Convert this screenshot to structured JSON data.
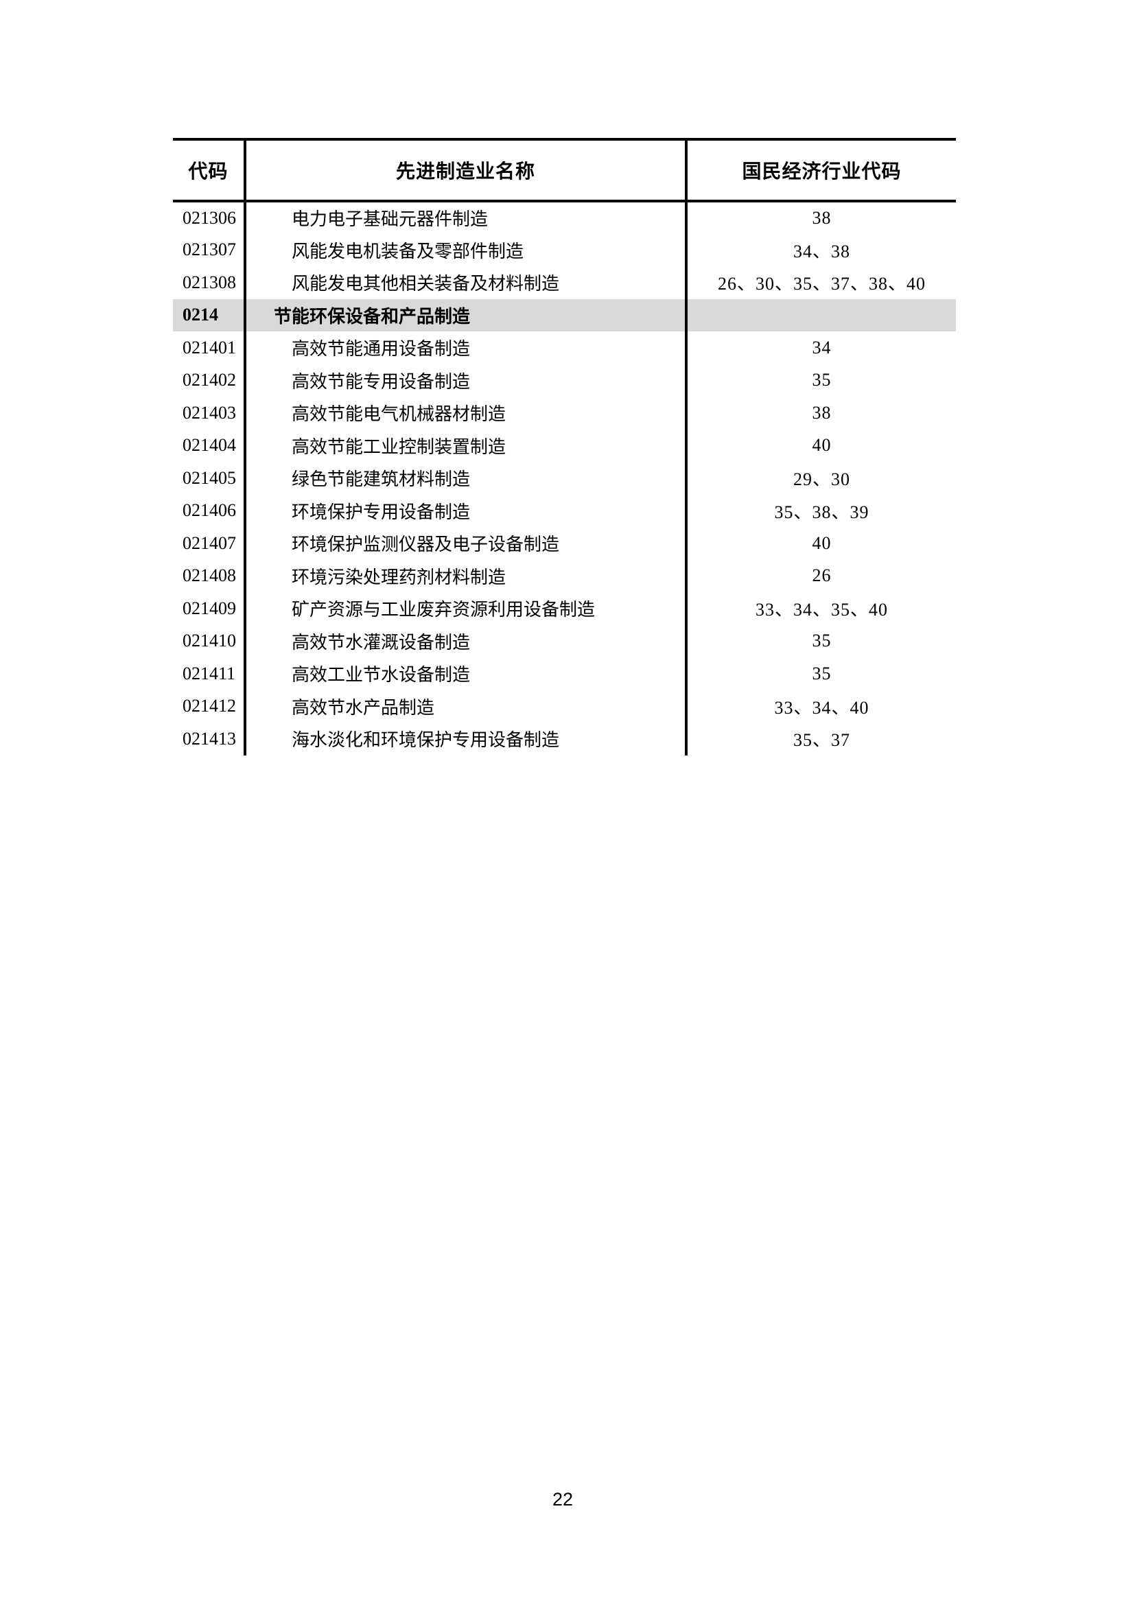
{
  "page_number": "22",
  "colors": {
    "highlight_row_bg": "#d9d9d9",
    "border": "#000000",
    "page_bg": "#ffffff"
  },
  "table": {
    "columns": [
      "代码",
      "先进制造业名称",
      "国民经济行业代码"
    ],
    "rows": [
      {
        "code": "021306",
        "name": "电力电子基础元器件制造",
        "industry_codes": "38",
        "category": false
      },
      {
        "code": "021307",
        "name": "风能发电机装备及零部件制造",
        "industry_codes": "34、38",
        "category": false
      },
      {
        "code": "021308",
        "name": "风能发电其他相关装备及材料制造",
        "industry_codes": "26、30、35、37、38、40",
        "category": false
      },
      {
        "code": "0214",
        "name": "节能环保设备和产品制造",
        "industry_codes": "",
        "category": true
      },
      {
        "code": "021401",
        "name": "高效节能通用设备制造",
        "industry_codes": "34",
        "category": false
      },
      {
        "code": "021402",
        "name": "高效节能专用设备制造",
        "industry_codes": "35",
        "category": false
      },
      {
        "code": "021403",
        "name": "高效节能电气机械器材制造",
        "industry_codes": "38",
        "category": false
      },
      {
        "code": "021404",
        "name": "高效节能工业控制装置制造",
        "industry_codes": "40",
        "category": false
      },
      {
        "code": "021405",
        "name": "绿色节能建筑材料制造",
        "industry_codes": "29、30",
        "category": false
      },
      {
        "code": "021406",
        "name": "环境保护专用设备制造",
        "industry_codes": "35、38、39",
        "category": false
      },
      {
        "code": "021407",
        "name": "环境保护监测仪器及电子设备制造",
        "industry_codes": "40",
        "category": false
      },
      {
        "code": "021408",
        "name": "环境污染处理药剂材料制造",
        "industry_codes": "26",
        "category": false
      },
      {
        "code": "021409",
        "name": "矿产资源与工业废弃资源利用设备制造",
        "industry_codes": "33、34、35、40",
        "category": false
      },
      {
        "code": "021410",
        "name": "高效节水灌溉设备制造",
        "industry_codes": "35",
        "category": false
      },
      {
        "code": "021411",
        "name": "高效工业节水设备制造",
        "industry_codes": "35",
        "category": false
      },
      {
        "code": "021412",
        "name": "高效节水产品制造",
        "industry_codes": "33、34、40",
        "category": false
      },
      {
        "code": "021413",
        "name": "海水淡化和环境保护专用设备制造",
        "industry_codes": "35、37",
        "category": false
      }
    ]
  }
}
